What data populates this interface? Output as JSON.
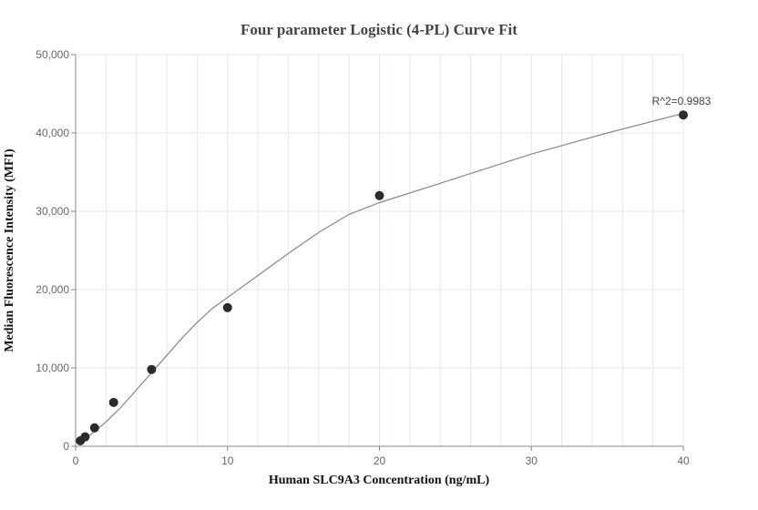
{
  "chart_data": {
    "type": "scatter",
    "title": "Four parameter Logistic (4-PL) Curve Fit",
    "xlabel": "Human SLC9A3 Concentration (ng/mL)",
    "ylabel": "Median Fluorescence Intensity (MFI)",
    "xlim": [
      0,
      40
    ],
    "ylim": [
      0,
      50000
    ],
    "x_ticks": [
      0,
      10,
      20,
      30,
      40
    ],
    "y_ticks": [
      0,
      10000,
      20000,
      30000,
      40000,
      50000
    ],
    "x_tick_labels": [
      "0",
      "10",
      "20",
      "30",
      "40"
    ],
    "y_tick_labels": [
      "0",
      "10,000",
      "20,000",
      "30,000",
      "40,000",
      "50,000"
    ],
    "grid": true,
    "points": [
      {
        "x": 0.3125,
        "y": 700
      },
      {
        "x": 0.625,
        "y": 1200
      },
      {
        "x": 1.25,
        "y": 2350
      },
      {
        "x": 2.5,
        "y": 5600
      },
      {
        "x": 5,
        "y": 9800
      },
      {
        "x": 10,
        "y": 17700
      },
      {
        "x": 20,
        "y": 32000
      },
      {
        "x": 40,
        "y": 42300
      }
    ],
    "fit_curve": [
      {
        "x": 0.3125,
        "y": 600
      },
      {
        "x": 1,
        "y": 1500
      },
      {
        "x": 2,
        "y": 3100
      },
      {
        "x": 3,
        "y": 5000
      },
      {
        "x": 4,
        "y": 7200
      },
      {
        "x": 5,
        "y": 9400
      },
      {
        "x": 6,
        "y": 11600
      },
      {
        "x": 7,
        "y": 13800
      },
      {
        "x": 8,
        "y": 15800
      },
      {
        "x": 9,
        "y": 17600
      },
      {
        "x": 10,
        "y": 19000
      },
      {
        "x": 12,
        "y": 21800
      },
      {
        "x": 14,
        "y": 24600
      },
      {
        "x": 16,
        "y": 27300
      },
      {
        "x": 18,
        "y": 29600
      },
      {
        "x": 20,
        "y": 31100
      },
      {
        "x": 25,
        "y": 34200
      },
      {
        "x": 30,
        "y": 37300
      },
      {
        "x": 35,
        "y": 40000
      },
      {
        "x": 40,
        "y": 42500
      }
    ],
    "annotation": "R^2=0.9983",
    "colors": {
      "point": "#2b2b2b",
      "curve": "#888888",
      "grid": "#e6e6f0",
      "axis": "#888888"
    }
  }
}
